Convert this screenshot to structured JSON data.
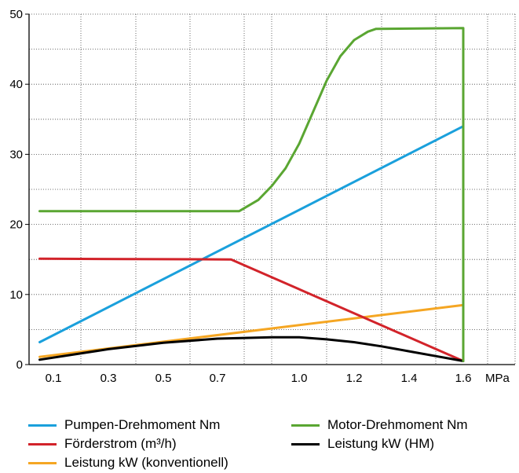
{
  "chart_data": {
    "type": "line",
    "x_tick_labels": [
      "0.1",
      "0.3",
      "0.5",
      "0.7",
      "1.0",
      "1.2",
      "1.4",
      "1.6"
    ],
    "x_unit": "MPa",
    "y_ticks": [
      0,
      10,
      20,
      30,
      40,
      50
    ],
    "ylim": [
      0,
      50
    ],
    "grid": "dotted",
    "series": [
      {
        "name": "Pumpen-Drehmoment Nm",
        "color": "#1aa0dc",
        "x": [
          0.05,
          1.6
        ],
        "y": [
          3.2,
          34.0
        ]
      },
      {
        "name": "Motor-Drehmoment Nm",
        "color": "#5aa632",
        "x": [
          0.05,
          0.78,
          0.85,
          0.9,
          0.95,
          1.0,
          1.05,
          1.1,
          1.15,
          1.2,
          1.25,
          1.28,
          1.6,
          1.6
        ],
        "y": [
          21.9,
          21.9,
          23.5,
          25.5,
          28.0,
          31.5,
          36.0,
          40.5,
          44.0,
          46.3,
          47.5,
          47.9,
          48.0,
          0.5
        ]
      },
      {
        "name": "Förderstrom (m³/h)",
        "color": "#d2232a",
        "x": [
          0.05,
          0.75,
          1.6
        ],
        "y": [
          15.1,
          15.0,
          0.5
        ]
      },
      {
        "name": "Leistung kW (HM)",
        "color": "#000000",
        "x": [
          0.05,
          0.3,
          0.5,
          0.7,
          0.9,
          1.0,
          1.1,
          1.2,
          1.3,
          1.4,
          1.5,
          1.6
        ],
        "y": [
          0.7,
          2.2,
          3.1,
          3.7,
          3.9,
          3.9,
          3.6,
          3.2,
          2.6,
          1.9,
          1.2,
          0.5
        ]
      },
      {
        "name": "Leistung kW (konventionell)",
        "color": "#f5a623",
        "x": [
          0.05,
          1.6
        ],
        "y": [
          1.1,
          8.5
        ]
      }
    ]
  },
  "legend": {
    "items": [
      {
        "label": "Pumpen-Drehmoment Nm",
        "color": "#1aa0dc"
      },
      {
        "label": "Förderstrom (m³/h)",
        "color": "#d2232a"
      },
      {
        "label": "Leistung kW (konventionell)",
        "color": "#f5a623"
      },
      {
        "label": "Motor-Drehmoment Nm",
        "color": "#5aa632"
      },
      {
        "label": "Leistung kW (HM)",
        "color": "#000000"
      }
    ]
  }
}
